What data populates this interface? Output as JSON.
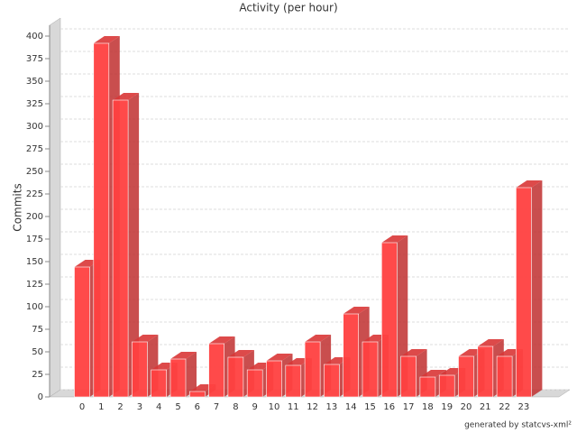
{
  "chart_data": {
    "type": "bar3d",
    "title": "Activity (per hour)",
    "y_label": "Commits",
    "footer": "generated by statcvs-xml²",
    "categories": [
      "0",
      "1",
      "2",
      "3",
      "4",
      "5",
      "6",
      "7",
      "8",
      "9",
      "10",
      "11",
      "12",
      "13",
      "14",
      "15",
      "16",
      "17",
      "18",
      "19",
      "20",
      "21",
      "22",
      "23"
    ],
    "values": [
      144,
      392,
      329,
      61,
      30,
      42,
      6,
      59,
      44,
      30,
      40,
      35,
      61,
      36,
      92,
      61,
      171,
      45,
      22,
      24,
      45,
      56,
      45,
      232
    ],
    "color": "#ff4040",
    "ylim": [
      0,
      400
    ],
    "yticks": [
      0,
      25,
      50,
      75,
      100,
      125,
      150,
      175,
      200,
      225,
      250,
      275,
      300,
      325,
      350,
      375,
      400
    ],
    "grid": true
  }
}
